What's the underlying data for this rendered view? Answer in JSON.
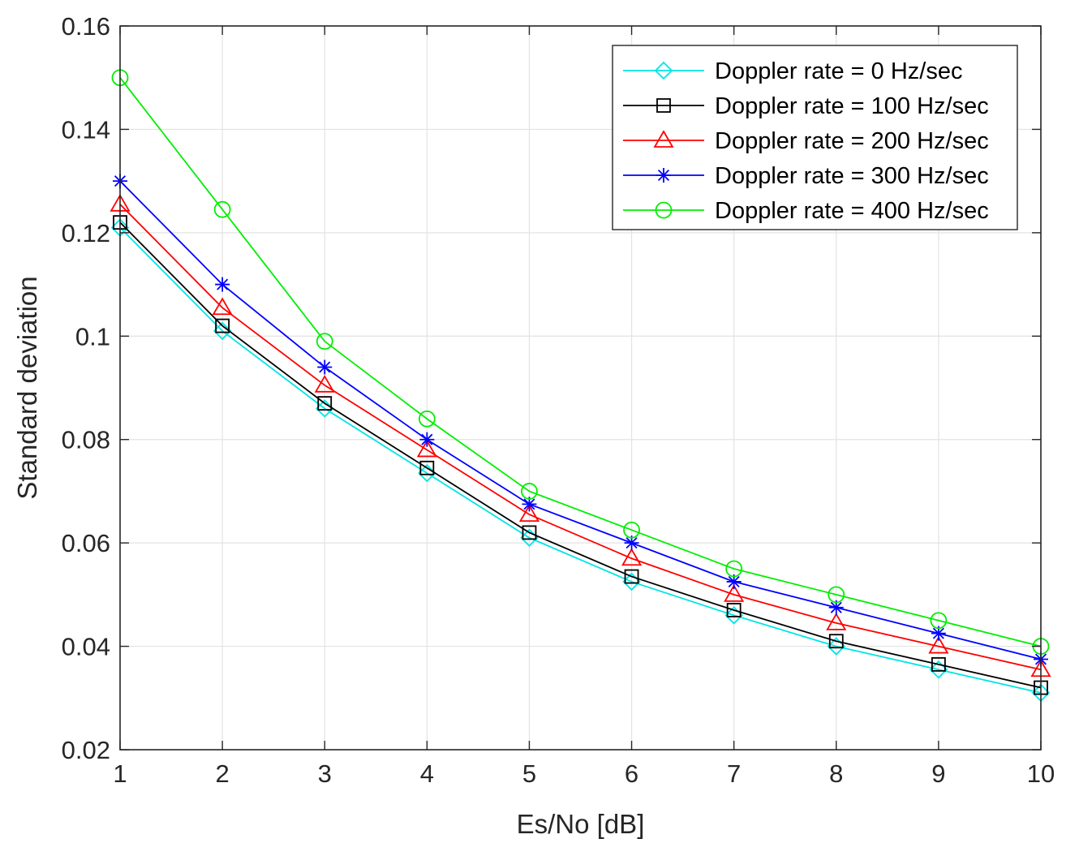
{
  "chart_data": {
    "type": "line",
    "title": "",
    "xlabel": "Es/No [dB]",
    "ylabel": "Standard deviation",
    "x": [
      1,
      2,
      3,
      4,
      5,
      6,
      7,
      8,
      9,
      10
    ],
    "xlim": [
      1,
      10
    ],
    "ylim": [
      0.02,
      0.16
    ],
    "xticks": [
      1,
      2,
      3,
      4,
      5,
      6,
      7,
      8,
      9,
      10
    ],
    "xtick_labels": [
      "1",
      "2",
      "3",
      "4",
      "5",
      "6",
      "7",
      "8",
      "9",
      "10"
    ],
    "yticks": [
      0.02,
      0.04,
      0.06,
      0.08,
      0.1,
      0.12,
      0.14,
      0.16
    ],
    "ytick_labels": [
      "0.02",
      "0.04",
      "0.06",
      "0.08",
      "0.1",
      "0.12",
      "0.14",
      "0.16"
    ],
    "grid": true,
    "legend_position": "top-right",
    "series": [
      {
        "name": "Doppler rate = 0 Hz/sec",
        "color": "#00e5e5",
        "marker": "diamond",
        "values": [
          0.121,
          0.101,
          0.086,
          0.0735,
          0.061,
          0.0525,
          0.046,
          0.04,
          0.0355,
          0.031
        ]
      },
      {
        "name": "Doppler rate = 100 Hz/sec",
        "color": "#000000",
        "marker": "square",
        "values": [
          0.122,
          0.102,
          0.087,
          0.0745,
          0.062,
          0.0535,
          0.047,
          0.041,
          0.0365,
          0.032
        ]
      },
      {
        "name": "Doppler rate = 200 Hz/sec",
        "color": "#ff0000",
        "marker": "triangle",
        "values": [
          0.1255,
          0.1055,
          0.0905,
          0.078,
          0.0655,
          0.057,
          0.05,
          0.0445,
          0.04,
          0.0355
        ]
      },
      {
        "name": "Doppler rate = 300 Hz/sec",
        "color": "#0000ff",
        "marker": "star",
        "values": [
          0.13,
          0.11,
          0.094,
          0.08,
          0.0675,
          0.06,
          0.0525,
          0.0475,
          0.0425,
          0.0375
        ]
      },
      {
        "name": "Doppler rate = 400 Hz/sec",
        "color": "#00ee00",
        "marker": "circle",
        "values": [
          0.15,
          0.1245,
          0.099,
          0.084,
          0.07,
          0.0625,
          0.055,
          0.05,
          0.045,
          0.04
        ]
      }
    ]
  }
}
